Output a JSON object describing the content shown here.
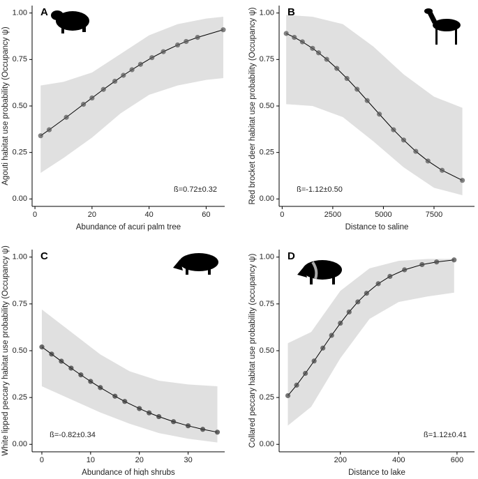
{
  "chart_data": [
    {
      "type": "line",
      "panel_label": "A",
      "x_label": "Abundance of acuri palm tree",
      "y_label": "Agouti habitat use probability (Occupancy ψ)",
      "annotation": "ß=0.72±0.32",
      "annotation_corner": "bottom-right",
      "x": [
        2,
        5,
        11,
        17,
        20,
        24,
        28,
        31,
        34,
        37,
        41,
        45,
        50,
        53,
        57,
        66
      ],
      "values": [
        0.34,
        0.372,
        0.439,
        0.509,
        0.543,
        0.589,
        0.633,
        0.665,
        0.695,
        0.724,
        0.76,
        0.792,
        0.828,
        0.847,
        0.869,
        0.91
      ],
      "color": "#5a5a5a",
      "line_color": "#000000",
      "band": {
        "x": [
          2,
          10,
          20,
          30,
          40,
          50,
          60,
          66
        ],
        "lower": [
          0.14,
          0.22,
          0.33,
          0.46,
          0.56,
          0.61,
          0.64,
          0.65
        ],
        "upper": [
          0.61,
          0.63,
          0.68,
          0.78,
          0.88,
          0.94,
          0.97,
          0.98
        ],
        "color": "#e0e0e0"
      },
      "xlim": [
        -1,
        66.5
      ],
      "ylim": [
        -0.04,
        1.04
      ],
      "xticks": [
        0,
        20,
        40,
        60
      ],
      "yticks": [
        {
          "value": 0,
          "label": "0.00"
        },
        {
          "value": 0.25,
          "label": "0.25"
        },
        {
          "value": 0.5,
          "label": "0.50"
        },
        {
          "value": 0.75,
          "label": "0.75"
        },
        {
          "value": 1,
          "label": "1.00"
        }
      ]
    },
    {
      "type": "line",
      "panel_label": "B",
      "x_label": "Distance to saline",
      "y_label": "Red brocket deer habitat use probability (Occupancy ψ)",
      "annotation": "ß=-1.12±0.50",
      "annotation_corner": "bottom-left",
      "x": [
        200,
        600,
        1000,
        1500,
        1800,
        2200,
        2700,
        3200,
        3700,
        4200,
        4800,
        5500,
        6000,
        6600,
        7200,
        7900,
        8900
      ],
      "values": [
        0.89,
        0.869,
        0.845,
        0.81,
        0.786,
        0.751,
        0.702,
        0.648,
        0.59,
        0.529,
        0.456,
        0.372,
        0.317,
        0.256,
        0.204,
        0.154,
        0.1
      ],
      "color": "#5a5a5a",
      "line_color": "#000000",
      "band": {
        "x": [
          200,
          1500,
          3000,
          4500,
          6000,
          7500,
          8900
        ],
        "lower": [
          0.51,
          0.5,
          0.44,
          0.31,
          0.17,
          0.06,
          0.02
        ],
        "upper": [
          0.99,
          0.98,
          0.94,
          0.82,
          0.67,
          0.55,
          0.49
        ],
        "color": "#e0e0e0"
      },
      "xlim": [
        -150,
        9500
      ],
      "ylim": [
        -0.04,
        1.04
      ],
      "xticks": [
        0,
        2500,
        5000,
        7500
      ],
      "yticks": [
        {
          "value": 0,
          "label": "0.00"
        },
        {
          "value": 0.25,
          "label": "0.25"
        },
        {
          "value": 0.5,
          "label": "0.50"
        },
        {
          "value": 0.75,
          "label": "0.75"
        },
        {
          "value": 1,
          "label": "1.00"
        }
      ]
    },
    {
      "type": "line",
      "panel_label": "C",
      "x_label": "Abundance of high shrubs",
      "y_label": "White lipped peccary habitat use probability (Occupancy ψ)",
      "annotation": "ß=-0.82±0.34",
      "annotation_corner": "bottom-left",
      "x": [
        0,
        2,
        4,
        6,
        8,
        10,
        12,
        15,
        17,
        20,
        22,
        24,
        27,
        30,
        33,
        36
      ],
      "values": [
        0.52,
        0.482,
        0.444,
        0.407,
        0.371,
        0.336,
        0.303,
        0.257,
        0.229,
        0.191,
        0.168,
        0.148,
        0.121,
        0.099,
        0.08,
        0.065
      ],
      "color": "#3a3a3a",
      "line_color": "#000000",
      "band": {
        "x": [
          0,
          6,
          12,
          18,
          24,
          30,
          36
        ],
        "lower": [
          0.31,
          0.24,
          0.17,
          0.11,
          0.06,
          0.03,
          0.01
        ],
        "upper": [
          0.72,
          0.6,
          0.48,
          0.39,
          0.34,
          0.32,
          0.31
        ],
        "color": "#e0e0e0"
      },
      "xlim": [
        -2,
        37.5
      ],
      "ylim": [
        -0.04,
        1.04
      ],
      "xticks": [
        0,
        10,
        20,
        30
      ],
      "yticks": [
        {
          "value": 0,
          "label": "0.00"
        },
        {
          "value": 0.25,
          "label": "0.25"
        },
        {
          "value": 0.5,
          "label": "0.50"
        },
        {
          "value": 0.75,
          "label": "0.75"
        },
        {
          "value": 1,
          "label": "1.00"
        }
      ]
    },
    {
      "type": "line",
      "panel_label": "D",
      "x_label": "Distance to lake",
      "y_label": "Collared peccary habitat use probability (occupancy ψ)",
      "annotation": "ß=1.12±0.41",
      "annotation_corner": "bottom-right",
      "x": [
        20,
        50,
        80,
        110,
        140,
        170,
        200,
        230,
        260,
        290,
        330,
        370,
        420,
        480,
        530,
        590
      ],
      "values": [
        0.26,
        0.316,
        0.379,
        0.445,
        0.514,
        0.582,
        0.647,
        0.707,
        0.761,
        0.807,
        0.858,
        0.897,
        0.932,
        0.96,
        0.974,
        0.985
      ],
      "color": "#4a4a4a",
      "line_color": "#000000",
      "band": {
        "x": [
          20,
          100,
          200,
          300,
          400,
          500,
          590
        ],
        "lower": [
          0.1,
          0.2,
          0.46,
          0.67,
          0.76,
          0.79,
          0.81
        ],
        "upper": [
          0.54,
          0.6,
          0.82,
          0.94,
          0.98,
          0.99,
          0.99
        ],
        "color": "#e0e0e0"
      },
      "xlim": [
        -10,
        660
      ],
      "ylim": [
        -0.04,
        1.04
      ],
      "xticks": [
        200,
        400,
        600
      ],
      "yticks": [
        {
          "value": 0,
          "label": "0.00"
        },
        {
          "value": 0.25,
          "label": "0.25"
        },
        {
          "value": 0.5,
          "label": "0.50"
        },
        {
          "value": 0.75,
          "label": "0.75"
        },
        {
          "value": 1,
          "label": "1.00"
        }
      ]
    }
  ]
}
